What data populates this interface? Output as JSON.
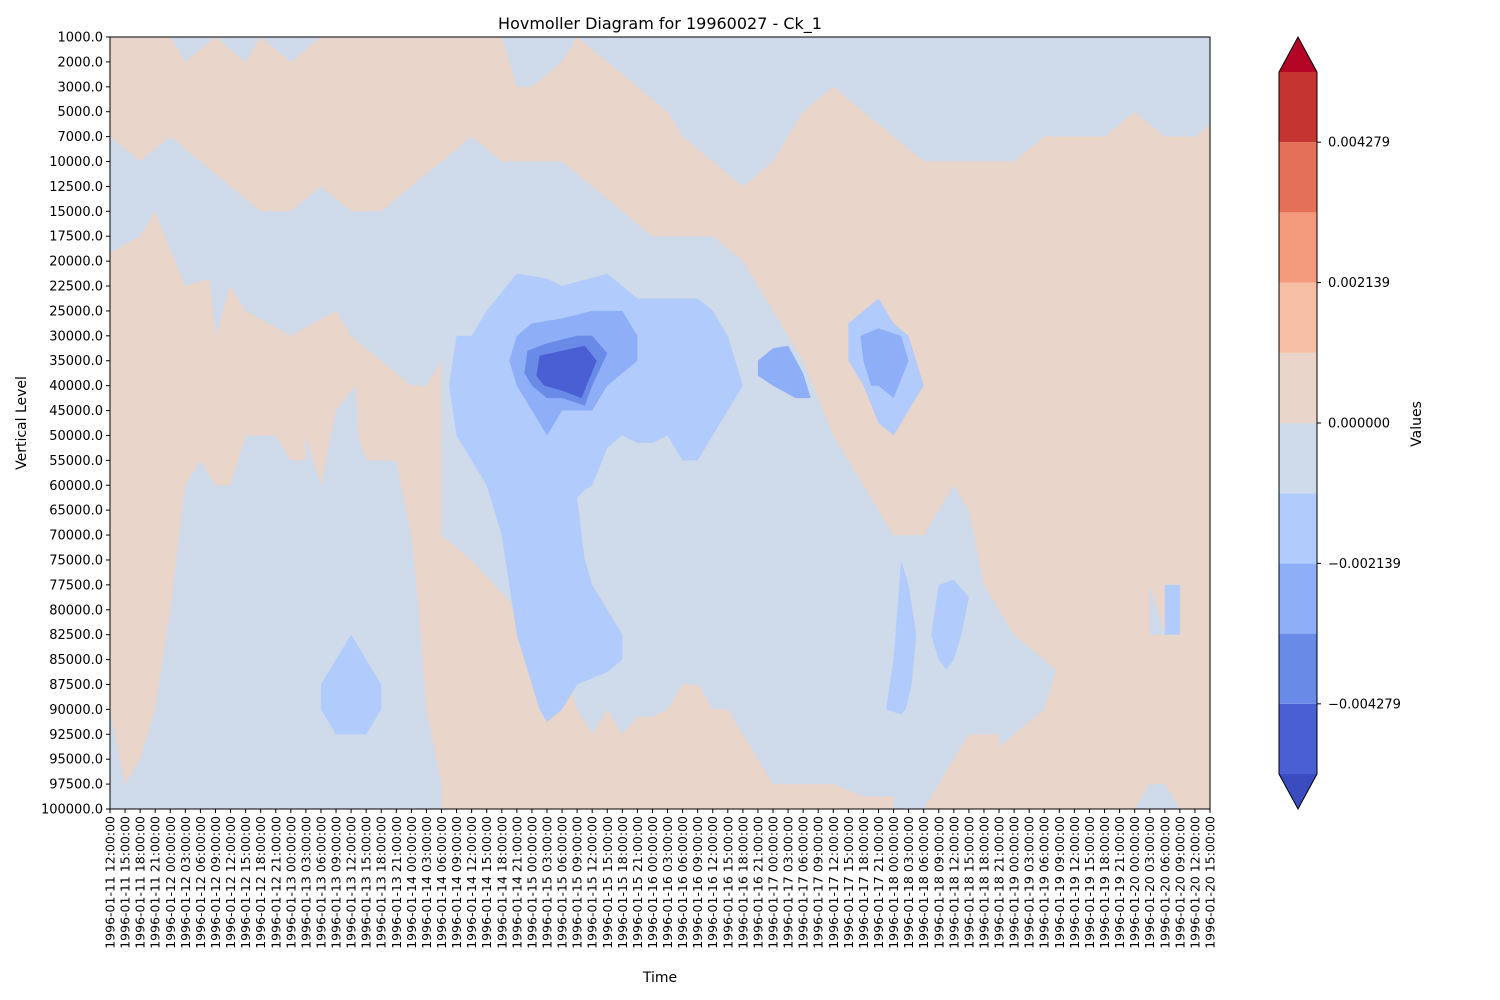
{
  "chart_data": {
    "type": "heatmap",
    "subtype": "filled-contour (Hovmoller)",
    "title": "Hovmoller Diagram for 19960027 - Ck_1",
    "xlabel": "Time",
    "ylabel": "Vertical Level",
    "colorbar_label": "Values",
    "colormap": "coolwarm",
    "y_axis_inverted": true,
    "y_ticks": [
      "1000.0",
      "2000.0",
      "3000.0",
      "5000.0",
      "7000.0",
      "10000.0",
      "12500.0",
      "15000.0",
      "17500.0",
      "20000.0",
      "22500.0",
      "25000.0",
      "30000.0",
      "35000.0",
      "40000.0",
      "45000.0",
      "50000.0",
      "55000.0",
      "60000.0",
      "65000.0",
      "70000.0",
      "75000.0",
      "77500.0",
      "80000.0",
      "82500.0",
      "85000.0",
      "87500.0",
      "90000.0",
      "92500.0",
      "95000.0",
      "97500.0",
      "100000.0"
    ],
    "x_ticks": [
      "1996-01-11 12:00:00",
      "1996-01-11 15:00:00",
      "1996-01-11 18:00:00",
      "1996-01-11 21:00:00",
      "1996-01-12 00:00:00",
      "1996-01-12 03:00:00",
      "1996-01-12 06:00:00",
      "1996-01-12 09:00:00",
      "1996-01-12 12:00:00",
      "1996-01-12 15:00:00",
      "1996-01-12 18:00:00",
      "1996-01-12 21:00:00",
      "1996-01-13 00:00:00",
      "1996-01-13 03:00:00",
      "1996-01-13 06:00:00",
      "1996-01-13 09:00:00",
      "1996-01-13 12:00:00",
      "1996-01-13 15:00:00",
      "1996-01-13 18:00:00",
      "1996-01-13 21:00:00",
      "1996-01-14 00:00:00",
      "1996-01-14 03:00:00",
      "1996-01-14 06:00:00",
      "1996-01-14 09:00:00",
      "1996-01-14 12:00:00",
      "1996-01-14 15:00:00",
      "1996-01-14 18:00:00",
      "1996-01-14 21:00:00",
      "1996-01-15 00:00:00",
      "1996-01-15 03:00:00",
      "1996-01-15 06:00:00",
      "1996-01-15 09:00:00",
      "1996-01-15 12:00:00",
      "1996-01-15 15:00:00",
      "1996-01-15 18:00:00",
      "1996-01-15 21:00:00",
      "1996-01-16 00:00:00",
      "1996-01-16 03:00:00",
      "1996-01-16 06:00:00",
      "1996-01-16 09:00:00",
      "1996-01-16 12:00:00",
      "1996-01-16 15:00:00",
      "1996-01-16 18:00:00",
      "1996-01-16 21:00:00",
      "1996-01-17 00:00:00",
      "1996-01-17 03:00:00",
      "1996-01-17 06:00:00",
      "1996-01-17 09:00:00",
      "1996-01-17 12:00:00",
      "1996-01-17 15:00:00",
      "1996-01-17 18:00:00",
      "1996-01-17 21:00:00",
      "1996-01-18 00:00:00",
      "1996-01-18 03:00:00",
      "1996-01-18 06:00:00",
      "1996-01-18 09:00:00",
      "1996-01-18 12:00:00",
      "1996-01-18 15:00:00",
      "1996-01-18 18:00:00",
      "1996-01-18 21:00:00",
      "1996-01-19 00:00:00",
      "1996-01-19 03:00:00",
      "1996-01-19 06:00:00",
      "1996-01-19 09:00:00",
      "1996-01-19 12:00:00",
      "1996-01-19 15:00:00",
      "1996-01-19 18:00:00",
      "1996-01-19 21:00:00",
      "1996-01-20 00:00:00",
      "1996-01-20 03:00:00",
      "1996-01-20 06:00:00",
      "1996-01-20 09:00:00",
      "1996-01-20 12:00:00",
      "1996-01-20 15:00:00"
    ],
    "colorbar": {
      "ticks": [
        "0.004279",
        "0.002139",
        "0.000000",
        "−0.002139",
        "−0.004279"
      ],
      "extend": "both",
      "levels": [
        -0.005348,
        -0.004279,
        -0.003209,
        -0.002139,
        -0.00107,
        0.0,
        0.00107,
        0.002139,
        0.003209,
        0.004279,
        0.005348
      ],
      "colors_low_to_high": [
        "#3b4cc0",
        "#4a5fd4",
        "#6a8ae8",
        "#8eaef8",
        "#b0cbfc",
        "#cfdaea",
        "#ead5cb",
        "#f6bea4",
        "#f29a7b",
        "#e47058",
        "#c53430",
        "#b40426"
      ],
      "under_color": "#3b4cc0",
      "over_color": "#b40426"
    },
    "grid": false,
    "legend": "colorbar right",
    "value_range_shown": [
      -0.0052,
      0.0011
    ]
  }
}
